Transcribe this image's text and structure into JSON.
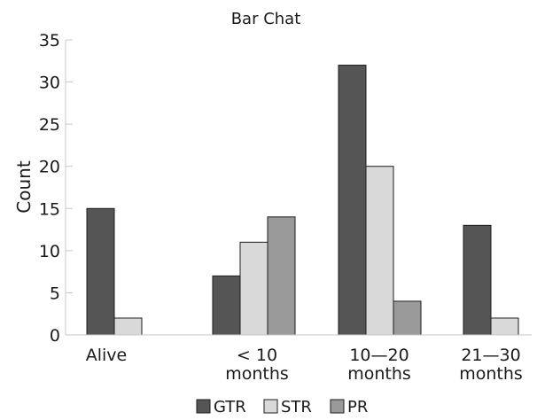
{
  "chart_data": {
    "type": "bar",
    "title": "Bar Chat",
    "xlabel": "",
    "ylabel": "Count",
    "ylim": [
      0,
      35
    ],
    "yticks": [
      0,
      5,
      10,
      15,
      20,
      25,
      30,
      35
    ],
    "categories": [
      "Alive",
      "< 10 months",
      "10—20 months",
      "21—30 months"
    ],
    "category_label_lines": [
      [
        "Alive"
      ],
      [
        "< 10",
        "months"
      ],
      [
        "10—20",
        "months"
      ],
      [
        "21—30",
        "months"
      ]
    ],
    "series": [
      {
        "name": "GTR",
        "color": "#555555",
        "values": [
          15,
          7,
          32,
          13
        ]
      },
      {
        "name": "STR",
        "color": "#d9d9d9",
        "values": [
          2,
          11,
          20,
          2
        ]
      },
      {
        "name": "PR",
        "color": "#9a9a9a",
        "values": [
          null,
          14,
          4,
          null
        ]
      }
    ],
    "grid": false,
    "legend_position": "bottom-center"
  }
}
